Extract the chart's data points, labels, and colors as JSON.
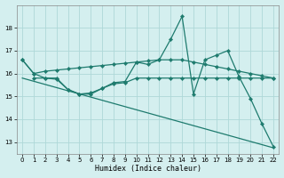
{
  "xlabel": "Humidex (Indice chaleur)",
  "xlim": [
    -0.5,
    22.5
  ],
  "ylim": [
    12.5,
    19.0
  ],
  "yticks": [
    13,
    14,
    15,
    16,
    17,
    18
  ],
  "xticks": [
    0,
    1,
    2,
    3,
    4,
    5,
    6,
    7,
    8,
    9,
    10,
    11,
    12,
    13,
    14,
    15,
    16,
    17,
    18,
    19,
    20,
    21,
    22
  ],
  "background_color": "#d4efef",
  "grid_color": "#aed8d8",
  "line_color": "#1e7b6e",
  "series_jagged": {
    "x": [
      0,
      1,
      2,
      3,
      4,
      5,
      6,
      7,
      8,
      9,
      10,
      11,
      12,
      13,
      14,
      15,
      16,
      17,
      18,
      19,
      20,
      21,
      22
    ],
    "y": [
      16.6,
      16.0,
      15.8,
      15.75,
      15.3,
      15.1,
      15.1,
      15.35,
      15.6,
      15.65,
      16.5,
      16.4,
      16.6,
      17.5,
      18.5,
      15.1,
      16.6,
      16.8,
      17.0,
      15.85,
      14.9,
      13.8,
      12.8
    ]
  },
  "series_smooth": {
    "x": [
      0,
      1,
      2,
      3,
      4,
      5,
      6,
      7,
      8,
      9,
      10,
      11,
      12,
      13,
      14,
      15,
      16,
      17,
      18,
      19,
      20,
      21,
      22
    ],
    "y": [
      16.6,
      16.0,
      16.1,
      16.15,
      16.2,
      16.25,
      16.3,
      16.35,
      16.4,
      16.45,
      16.5,
      16.55,
      16.6,
      16.6,
      16.6,
      16.5,
      16.4,
      16.3,
      16.2,
      16.1,
      16.0,
      15.9,
      15.8
    ]
  },
  "series_flat": {
    "x": [
      1,
      2,
      3,
      4,
      5,
      6,
      7,
      8,
      9,
      10,
      11,
      12,
      13,
      14,
      15,
      16,
      17,
      18,
      19,
      20,
      21,
      22
    ],
    "y": [
      15.8,
      15.8,
      15.8,
      15.3,
      15.1,
      15.15,
      15.35,
      15.55,
      15.6,
      15.8,
      15.8,
      15.8,
      15.8,
      15.8,
      15.8,
      15.8,
      15.8,
      15.8,
      15.8,
      15.8,
      15.8,
      15.8
    ]
  },
  "series_decline": {
    "x": [
      0,
      22
    ],
    "y": [
      15.8,
      12.75
    ]
  }
}
